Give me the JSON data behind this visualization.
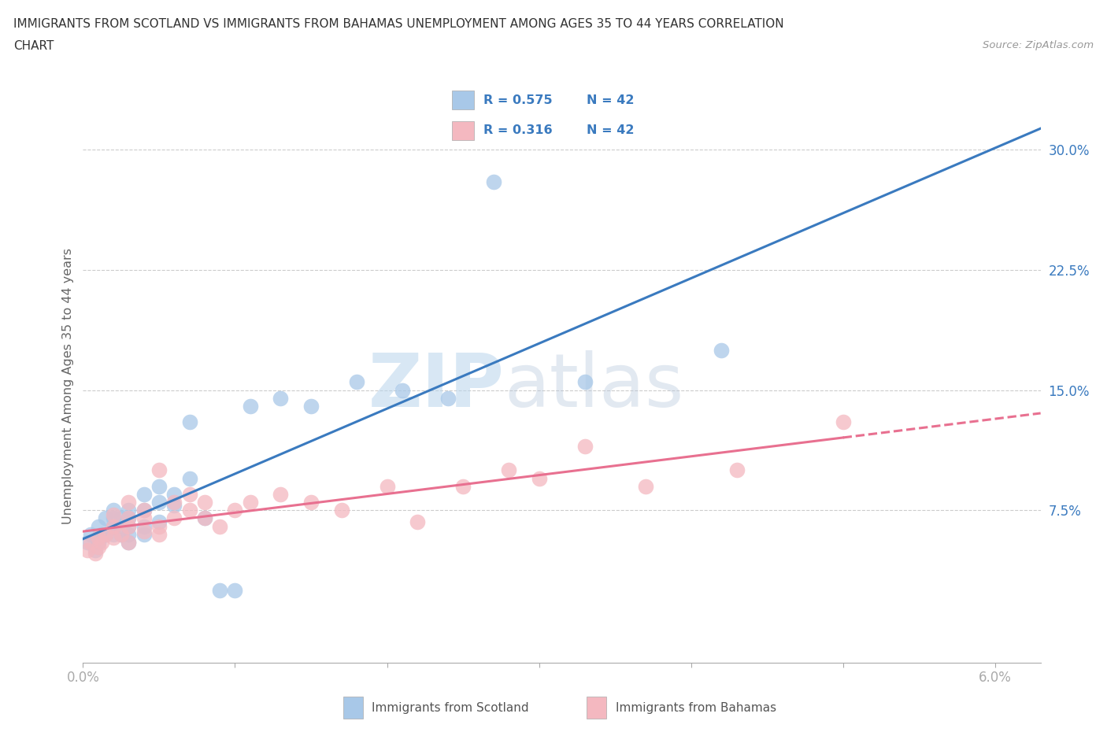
{
  "title_line1": "IMMIGRANTS FROM SCOTLAND VS IMMIGRANTS FROM BAHAMAS UNEMPLOYMENT AMONG AGES 35 TO 44 YEARS CORRELATION",
  "title_line2": "CHART",
  "source": "Source: ZipAtlas.com",
  "ylabel": "Unemployment Among Ages 35 to 44 years",
  "xlim": [
    0.0,
    0.063
  ],
  "ylim": [
    -0.02,
    0.325
  ],
  "yticks_right": [
    0.075,
    0.15,
    0.225,
    0.3
  ],
  "yticklabels_right": [
    "7.5%",
    "15.0%",
    "22.5%",
    "30.0%"
  ],
  "R_scotland": "0.575",
  "N_scotland": "42",
  "R_bahamas": "0.316",
  "N_bahamas": "42",
  "scotland_dot_color": "#a8c8e8",
  "bahamas_dot_color": "#f4b8c0",
  "scotland_line_color": "#3a7abf",
  "bahamas_line_color": "#e87090",
  "legend_text_color": "#3a7abf",
  "legend_label_color": "#333333",
  "watermark_zip": "ZIP",
  "watermark_atlas": "atlas",
  "scotland_x": [
    0.0003,
    0.0005,
    0.0008,
    0.001,
    0.001,
    0.0012,
    0.0015,
    0.0015,
    0.002,
    0.002,
    0.002,
    0.002,
    0.0025,
    0.0025,
    0.003,
    0.003,
    0.003,
    0.003,
    0.003,
    0.004,
    0.004,
    0.004,
    0.004,
    0.005,
    0.005,
    0.005,
    0.006,
    0.006,
    0.007,
    0.007,
    0.008,
    0.009,
    0.01,
    0.011,
    0.013,
    0.015,
    0.018,
    0.021,
    0.024,
    0.027,
    0.033,
    0.042
  ],
  "scotland_y": [
    0.055,
    0.06,
    0.05,
    0.055,
    0.065,
    0.06,
    0.06,
    0.07,
    0.065,
    0.07,
    0.075,
    0.06,
    0.06,
    0.07,
    0.055,
    0.06,
    0.065,
    0.07,
    0.075,
    0.06,
    0.065,
    0.075,
    0.085,
    0.068,
    0.08,
    0.09,
    0.078,
    0.085,
    0.095,
    0.13,
    0.07,
    0.025,
    0.025,
    0.14,
    0.145,
    0.14,
    0.155,
    0.15,
    0.145,
    0.28,
    0.155,
    0.175
  ],
  "bahamas_x": [
    0.0003,
    0.0005,
    0.0008,
    0.001,
    0.001,
    0.0012,
    0.0015,
    0.002,
    0.002,
    0.002,
    0.0025,
    0.003,
    0.003,
    0.003,
    0.003,
    0.004,
    0.004,
    0.004,
    0.005,
    0.005,
    0.005,
    0.006,
    0.006,
    0.007,
    0.007,
    0.008,
    0.008,
    0.009,
    0.01,
    0.011,
    0.013,
    0.015,
    0.017,
    0.02,
    0.022,
    0.025,
    0.028,
    0.03,
    0.033,
    0.037,
    0.043,
    0.05
  ],
  "bahamas_y": [
    0.05,
    0.055,
    0.048,
    0.052,
    0.058,
    0.055,
    0.06,
    0.058,
    0.065,
    0.072,
    0.06,
    0.055,
    0.065,
    0.07,
    0.08,
    0.062,
    0.07,
    0.075,
    0.06,
    0.065,
    0.1,
    0.07,
    0.08,
    0.075,
    0.085,
    0.07,
    0.08,
    0.065,
    0.075,
    0.08,
    0.085,
    0.08,
    0.075,
    0.09,
    0.068,
    0.09,
    0.1,
    0.095,
    0.115,
    0.09,
    0.1,
    0.13
  ]
}
